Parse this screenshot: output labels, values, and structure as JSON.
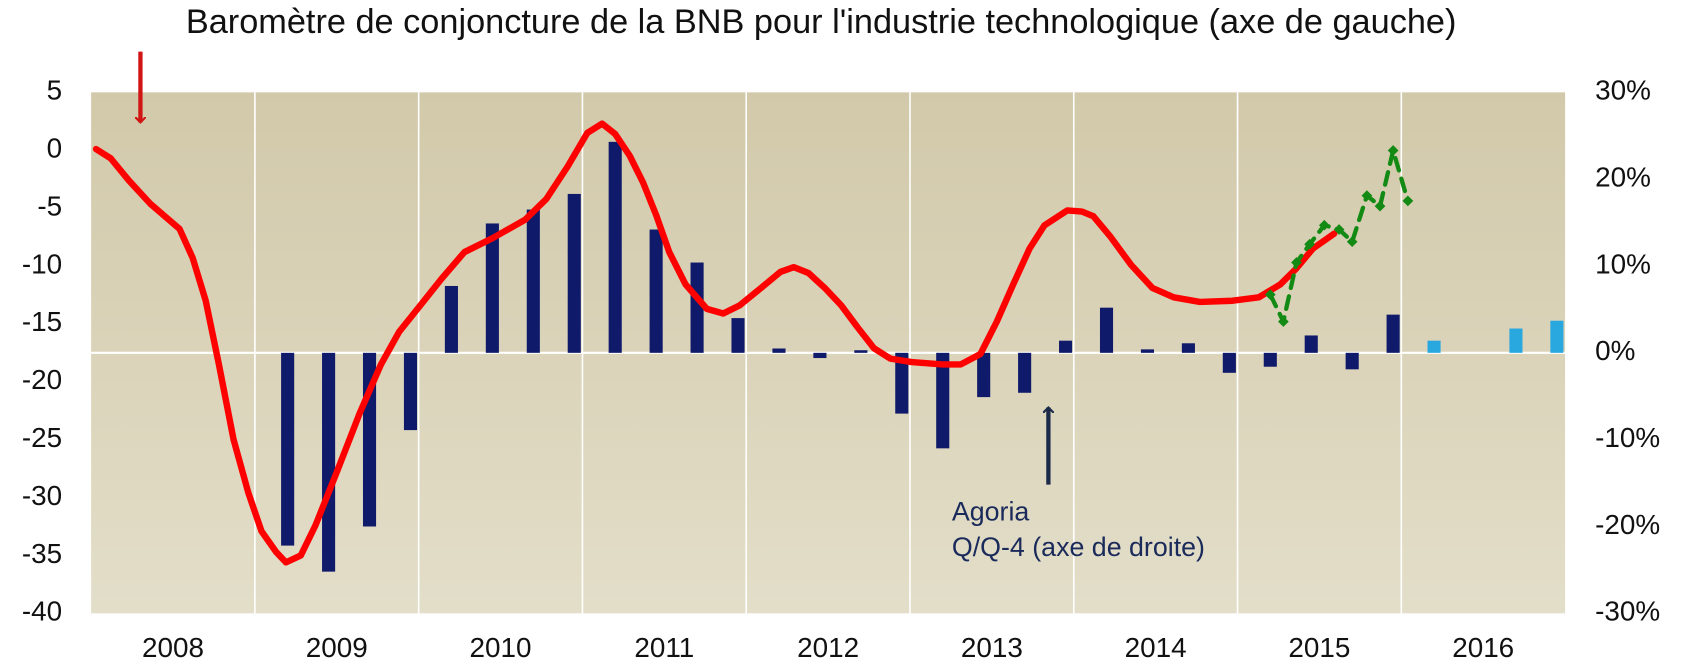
{
  "chart_data": {
    "type": "combo",
    "annotations": [
      {
        "text": "Baromètre de conjoncture de la BNB pour l'industrie technologique (axe de gauche)"
      },
      {
        "lines": [
          "Agoria",
          "Q/Q-4 (axe de droite)"
        ]
      }
    ],
    "categories": [
      "2008",
      "2009",
      "2010",
      "2011",
      "2012",
      "2013",
      "2014",
      "2015",
      "2016"
    ],
    "xlim": [
      2008,
      2017
    ],
    "ylim": [
      -40,
      5
    ],
    "yticks": [
      5,
      0,
      -5,
      -10,
      -15,
      -20,
      -25,
      -30,
      -35,
      -40
    ],
    "y2lim": [
      -30,
      30
    ],
    "y2ticks": [
      {
        "value": 30,
        "label": "30%"
      },
      {
        "value": 20,
        "label": "20%"
      },
      {
        "value": 10,
        "label": "10%"
      },
      {
        "value": 0,
        "label": "0%"
      },
      {
        "value": -10,
        "label": "-10%"
      },
      {
        "value": -20,
        "label": "-20%"
      },
      {
        "value": -30,
        "label": "-30%"
      }
    ],
    "grid": true,
    "series": [
      {
        "type": "bar",
        "axis": "y2",
        "color": "#101a6a",
        "x": [
          2009.2,
          2009.45,
          2009.7,
          2009.95,
          2010.2,
          2010.45,
          2010.7,
          2010.95,
          2011.2,
          2011.45,
          2011.7,
          2011.95,
          2012.2,
          2012.45,
          2012.7,
          2012.95,
          2013.2,
          2013.45,
          2013.7,
          2013.95,
          2014.2,
          2014.45,
          2014.7,
          2014.95,
          2015.2,
          2015.45,
          2015.7,
          2015.95
        ],
        "values": [
          -22.2,
          -25.2,
          -20,
          -8.9,
          7.7,
          14.9,
          16.5,
          18.3,
          24.3,
          14.2,
          10.4,
          4.0,
          0.5,
          -0.6,
          0.3,
          -7.0,
          -11,
          -5.1,
          -4.6,
          1.4,
          5.2,
          0.4,
          1.1,
          -2.3,
          -1.6,
          2.0,
          -1.9,
          4.4
        ]
      },
      {
        "type": "bar",
        "axis": "y2",
        "color": "#29a8e0",
        "x": [
          2016.2,
          2016.7,
          2016.95
        ],
        "values": [
          1.4,
          2.8,
          3.7
        ]
      },
      {
        "type": "line",
        "axis": "y",
        "color": "#ff0000",
        "x": [
          2008.03,
          2008.12,
          2008.23,
          2008.36,
          2008.54,
          2008.62,
          2008.7,
          2008.78,
          2008.87,
          2008.96,
          2009.04,
          2009.13,
          2009.19,
          2009.28,
          2009.37,
          2009.5,
          2009.64,
          2009.77,
          2009.88,
          2010.01,
          2010.14,
          2010.28,
          2010.45,
          2010.65,
          2010.78,
          2010.91,
          2011.03,
          2011.12,
          2011.2,
          2011.29,
          2011.37,
          2011.45,
          2011.53,
          2011.63,
          2011.76,
          2011.86,
          2011.96,
          2012.09,
          2012.21,
          2012.29,
          2012.38,
          2012.48,
          2012.58,
          2012.68,
          2012.78,
          2012.88,
          2013.01,
          2013.2,
          2013.31,
          2013.43,
          2013.53,
          2013.63,
          2013.73,
          2013.82,
          2013.96,
          2014.05,
          2014.12,
          2014.22,
          2014.35,
          2014.48,
          2014.61,
          2014.77,
          2014.97,
          2015.13,
          2015.26,
          2015.36,
          2015.46,
          2015.59
        ],
        "values": [
          0.1,
          -0.7,
          -2.6,
          -4.6,
          -6.8,
          -9.3,
          -13,
          -18.5,
          -25,
          -29.6,
          -32.9,
          -34.7,
          -35.6,
          -35,
          -32.4,
          -27.8,
          -22.7,
          -18.5,
          -15.7,
          -13.4,
          -11.1,
          -8.8,
          -7.6,
          -6,
          -4.2,
          -1.4,
          1.5,
          2.3,
          1.4,
          -0.5,
          -2.8,
          -5.6,
          -8.8,
          -11.6,
          -13.7,
          -14.1,
          -13.4,
          -11.9,
          -10.5,
          -10.1,
          -10.6,
          -11.9,
          -13.4,
          -15.3,
          -17.1,
          -18,
          -18.3,
          -18.5,
          -18.5,
          -17.6,
          -14.8,
          -11.6,
          -8.5,
          -6.5,
          -5.2,
          -5.3,
          -5.7,
          -7.4,
          -9.9,
          -11.9,
          -12.7,
          -13.1,
          -13,
          -12.7,
          -11.6,
          -10.2,
          -8.5,
          -7.2
        ]
      },
      {
        "type": "dashed",
        "axis": "y2",
        "color": "#138a13",
        "x": [
          2015.2,
          2015.28,
          2015.36,
          2015.44,
          2015.53,
          2015.62,
          2015.7,
          2015.79,
          2015.87,
          2015.95,
          2016.04
        ],
        "values": [
          6.7,
          3.6,
          10.4,
          12.5,
          14.7,
          14.2,
          12.8,
          18.1,
          16.9,
          23.3,
          17.5
        ]
      }
    ]
  }
}
